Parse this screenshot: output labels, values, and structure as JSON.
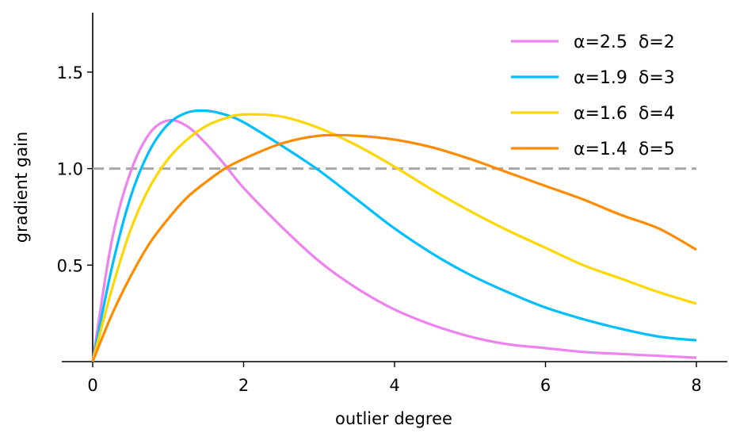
{
  "chart_data": {
    "type": "line",
    "title": "",
    "xlabel": "outlier degree",
    "ylabel": "gradient gain",
    "xlim": [
      0,
      8
    ],
    "ylim": [
      0,
      1.8
    ],
    "xticks": [
      0,
      2,
      4,
      6,
      8
    ],
    "xtick_labels": [
      "0",
      "2",
      "4",
      "6",
      "8"
    ],
    "yticks": [
      0.5,
      1.0,
      1.5
    ],
    "ytick_labels": [
      "0.5",
      "1.0",
      "1.5"
    ],
    "grid": false,
    "legend_position": "top-right",
    "reference_line": {
      "y": 1.0,
      "style": "dashed",
      "color": "#a6a6a6"
    },
    "x": [
      0,
      0.25,
      0.5,
      0.75,
      1,
      1.25,
      1.5,
      1.75,
      2,
      2.5,
      3,
      3.5,
      4,
      4.5,
      5,
      5.5,
      6,
      6.5,
      7,
      7.5,
      8
    ],
    "series": [
      {
        "name": "α=2.5  δ=2",
        "color": "#ee82ee",
        "values": [
          0,
          0.62,
          0.98,
          1.18,
          1.25,
          1.22,
          1.13,
          1.02,
          0.9,
          0.7,
          0.52,
          0.38,
          0.27,
          0.19,
          0.13,
          0.09,
          0.07,
          0.05,
          0.04,
          0.03,
          0.02
        ]
      },
      {
        "name": "α=1.9  δ=3",
        "color": "#00bfff",
        "values": [
          0,
          0.48,
          0.85,
          1.09,
          1.23,
          1.29,
          1.3,
          1.28,
          1.24,
          1.12,
          0.99,
          0.84,
          0.69,
          0.56,
          0.45,
          0.36,
          0.28,
          0.22,
          0.17,
          0.13,
          0.11
        ]
      },
      {
        "name": "α=1.6  δ=4",
        "color": "#ffd700",
        "values": [
          0,
          0.37,
          0.68,
          0.9,
          1.05,
          1.15,
          1.22,
          1.26,
          1.28,
          1.27,
          1.21,
          1.12,
          1.01,
          0.89,
          0.78,
          0.68,
          0.59,
          0.5,
          0.43,
          0.36,
          0.3
        ]
      },
      {
        "name": "α=1.4  δ=5",
        "color": "#ff8c00",
        "values": [
          0,
          0.24,
          0.44,
          0.61,
          0.74,
          0.85,
          0.93,
          1.0,
          1.05,
          1.13,
          1.17,
          1.17,
          1.15,
          1.11,
          1.05,
          0.98,
          0.91,
          0.84,
          0.76,
          0.69,
          0.58
        ]
      }
    ]
  }
}
